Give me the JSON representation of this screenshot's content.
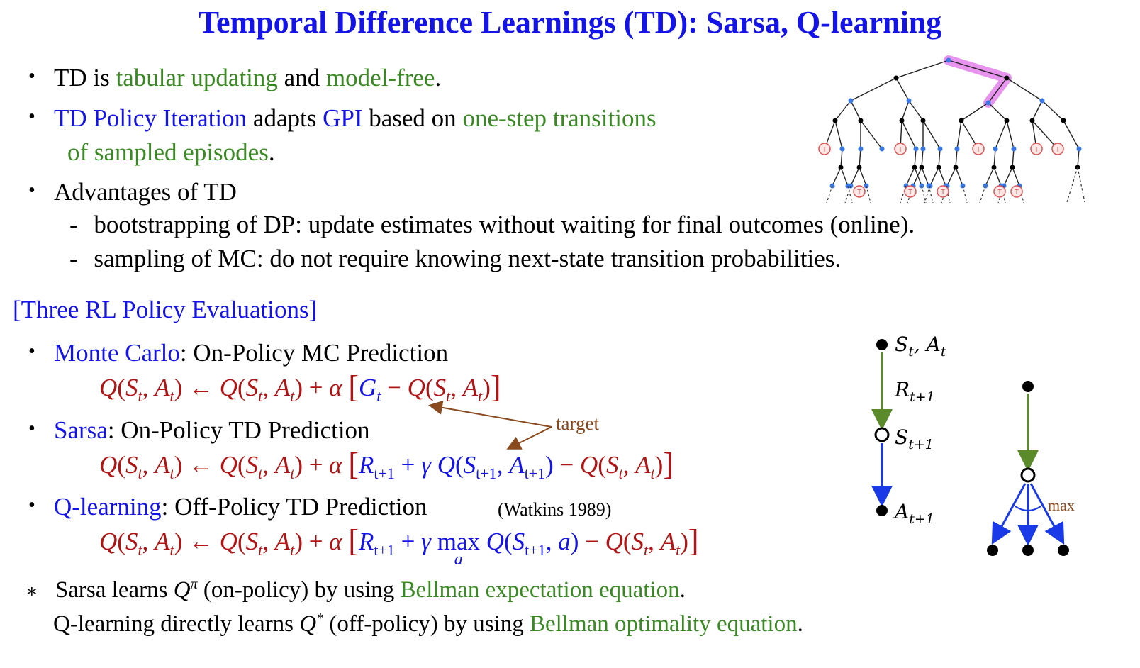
{
  "title": "Temporal Difference Learnings (TD): Sarsa, Q-learning",
  "bullets": {
    "b1": {
      "p1": "TD is ",
      "p2": "tabular updating",
      "p3": " and ",
      "p4": "model-free",
      "p5": "."
    },
    "b2": {
      "p1": "TD Policy Iteration",
      "p2": " adapts ",
      "p3": "GPI",
      "p4": " based on ",
      "p5": "one-step transitions",
      "p6": "of sampled episodes",
      "p7": "."
    },
    "b3": {
      "label": "Advantages of TD",
      "sub1": "bootstrapping of DP: update estimates without waiting for final outcomes (online).",
      "sub2": "sampling of MC: do not require knowing next-state transition probabilities."
    }
  },
  "section_heading": "[Three RL Policy Evaluations]",
  "methods": {
    "mc": {
      "name": "Monte Carlo",
      "desc": ": On-Policy MC Prediction"
    },
    "sarsa": {
      "name": "Sarsa",
      "desc": ": On-Policy TD Prediction"
    },
    "ql": {
      "name": "Q-learning",
      "desc": ": Off-Policy TD Prediction",
      "cite": "(Watkins 1989)"
    }
  },
  "target_label": "target",
  "max_label": "max",
  "footnote": {
    "star": "∗",
    "line1": {
      "p1": "Sarsa learns ",
      "p2": " (on-policy) by using ",
      "p3": "Bellman expectation equation",
      "p4": "."
    },
    "line2": {
      "p1": "Q-learning directly learns ",
      "p2": " (off-policy) by using ",
      "p3": "Bellman optimality equation",
      "p4": "."
    }
  },
  "backup_labels": {
    "s_t": "S",
    "a_t": "A",
    "r": "R",
    "s_next": "S",
    "a_next": "A",
    "sub_t": "t",
    "sub_t1": "t+1"
  },
  "tree_terminal_label": "T",
  "colors": {
    "title": "#1414e8",
    "green": "#3a8a24",
    "red": "#b01414",
    "brown": "#8a4a1e",
    "tree_state": "#3a78e8",
    "tree_highlight": "#e070e8",
    "terminal": "#e05050",
    "arrow_green": "#5a8a2a",
    "arrow_blue": "#1a3ae8"
  }
}
